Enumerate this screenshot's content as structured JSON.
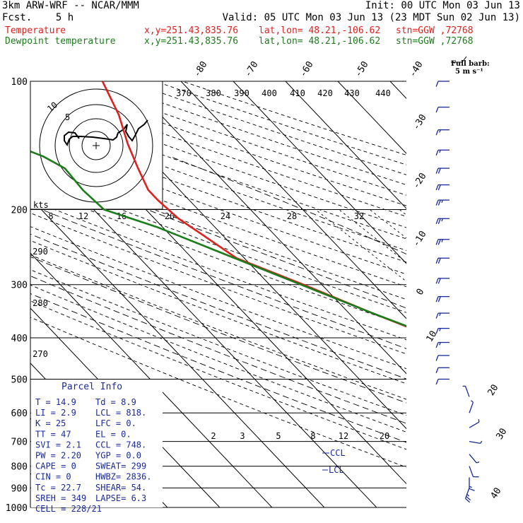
{
  "header": {
    "model": "3km ARW-WRF -- NCAR/MMM",
    "init": "Init: 00 UTC Mon 03 Jun 13",
    "fcst": "Fcst.    5 h",
    "valid": "Valid: 05 UTC Mon 03 Jun 13 (23 MDT Sun 02 Jun 13)",
    "temp_label": "Temperature",
    "dew_label": "Dewpoint temperature",
    "xy": "x,y=251.43,835.76",
    "latlon": "lat,lon= 48.21,-106.62",
    "stn": "stn=GGW ,72768"
  },
  "colors": {
    "temperature": "#e0201e",
    "dewpoint": "#1c7c1c",
    "barb": "#1a2a9c",
    "parcel": "#1a2a9c"
  },
  "barb_key": {
    "title": "Full barb:",
    "value": "5 m s⁻¹"
  },
  "hodograph": {
    "unit": "kts",
    "ring_labels": [
      "5",
      "10"
    ]
  },
  "parcel": {
    "title": "Parcel Info",
    "rows": [
      [
        "T  =    14.9",
        "Td =    8.9"
      ],
      [
        "LI =     2.9",
        "LCL =  818."
      ],
      [
        "K  =      25",
        "LFC =    0."
      ],
      [
        "TT =      47",
        "EL  =    0."
      ],
      [
        "SVI =    2.1",
        "CCL =  748."
      ],
      [
        "PW =    2.20",
        "YGP =   0.0"
      ],
      [
        "CAPE =     0",
        "SWEAT=  299"
      ],
      [
        "CIN =      0",
        "HWBZ= 2836."
      ],
      [
        "Tc =    22.7",
        "SHEAR=  54."
      ],
      [
        "SREH =   349",
        "LAPSE=  6.3"
      ],
      [
        "CELL = 228/21",
        ""
      ]
    ]
  },
  "level_markers": {
    "ccl": "CCL",
    "lcl": "LCL"
  },
  "chart_data": {
    "type": "line",
    "title": "",
    "ylabel": "",
    "y_scale": "log-pressure",
    "ylim": [
      1000,
      100
    ],
    "pressure_ticks": [
      "100",
      "200",
      "300",
      "400",
      "500",
      "600",
      "700",
      "800",
      "900",
      "1000"
    ],
    "isotherm_labels": [
      "-80",
      "-70",
      "-60",
      "-50",
      "-40",
      "-30",
      "-20",
      "-10",
      "0",
      "10",
      "20",
      "30",
      "40"
    ],
    "theta_labels_top": [
      "370",
      "380",
      "390",
      "400",
      "410",
      "420",
      "430",
      "440"
    ],
    "theta_labels_left": [
      "290",
      "280",
      "270"
    ],
    "mixing_ratio_labels_mid": [
      "8",
      "12",
      "16",
      "20",
      "24",
      "28",
      "32"
    ],
    "mixing_ratio_labels_low": [
      "2",
      "3",
      "5",
      "8",
      "12",
      "20"
    ],
    "series": [
      {
        "name": "Temperature",
        "p": [
          900,
          880,
          850,
          800,
          750,
          700,
          650,
          600,
          550,
          500,
          450,
          400,
          350,
          300,
          260,
          230,
          210,
          190,
          180,
          160,
          140,
          120,
          100
        ],
        "t": [
          14.9,
          13.5,
          11.2,
          7.5,
          4.0,
          0.3,
          -3.3,
          -7.3,
          -11.5,
          -16.5,
          -22.0,
          -28.0,
          -35.5,
          -43.5,
          -51.5,
          -53.7,
          -55.4,
          -56.0,
          -56.0,
          -54.0,
          -51.5,
          -48.0,
          -45.0
        ]
      },
      {
        "name": "Dewpoint temperature",
        "p": [
          900,
          850,
          820,
          800,
          760,
          720,
          700,
          650,
          600,
          560,
          520,
          500,
          450,
          400,
          350,
          300,
          250,
          220,
          200,
          180,
          160,
          150,
          140,
          130,
          120,
          110,
          100
        ],
        "t": [
          8.9,
          8.5,
          7.5,
          4.0,
          -2.0,
          -4.5,
          -6.3,
          -9.5,
          -10.5,
          -10.8,
          -11.5,
          -13.7,
          -20.5,
          -27.5,
          -35.5,
          -44.0,
          -54.0,
          -61.0,
          -68.0,
          -68.5,
          -68.0,
          -70.0,
          -74.0,
          -76.5,
          -79.0,
          -81.5,
          -84.0
        ]
      }
    ],
    "wind_barbs_left": [
      {
        "p": 900,
        "dir": 200,
        "spd": 25
      },
      {
        "p": 850,
        "dir": 180,
        "spd": 15
      },
      {
        "p": 800,
        "dir": 160,
        "spd": 10
      },
      {
        "p": 750,
        "dir": 140,
        "spd": 5
      },
      {
        "p": 700,
        "dir": 100,
        "spd": 5
      },
      {
        "p": 650,
        "dir": 60,
        "spd": 5
      },
      {
        "p": 600,
        "dir": 20,
        "spd": 5
      },
      {
        "p": 550,
        "dir": 340,
        "spd": 5
      }
    ],
    "wind_barbs_right": [
      {
        "p": 100,
        "dir": 270,
        "spd": 10
      },
      {
        "p": 115,
        "dir": 270,
        "spd": 10
      },
      {
        "p": 130,
        "dir": 270,
        "spd": 15
      },
      {
        "p": 145,
        "dir": 270,
        "spd": 15
      },
      {
        "p": 160,
        "dir": 270,
        "spd": 20
      },
      {
        "p": 175,
        "dir": 270,
        "spd": 20
      },
      {
        "p": 190,
        "dir": 270,
        "spd": 25
      },
      {
        "p": 210,
        "dir": 270,
        "spd": 25
      },
      {
        "p": 235,
        "dir": 270,
        "spd": 25
      },
      {
        "p": 260,
        "dir": 270,
        "spd": 20
      },
      {
        "p": 290,
        "dir": 270,
        "spd": 20
      },
      {
        "p": 320,
        "dir": 270,
        "spd": 20
      },
      {
        "p": 350,
        "dir": 270,
        "spd": 15
      },
      {
        "p": 380,
        "dir": 270,
        "spd": 15
      },
      {
        "p": 410,
        "dir": 270,
        "spd": 15
      },
      {
        "p": 440,
        "dir": 270,
        "spd": 10
      },
      {
        "p": 470,
        "dir": 270,
        "spd": 10
      },
      {
        "p": 500,
        "dir": 270,
        "spd": 10
      }
    ]
  }
}
